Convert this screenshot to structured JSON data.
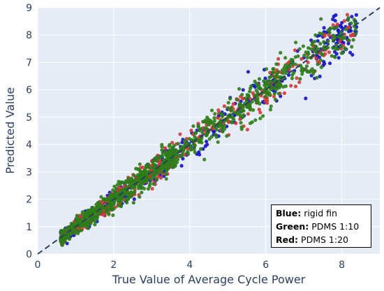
{
  "chart_data": {
    "type": "scatter",
    "xlabel": "True Value of Average Cycle Power",
    "ylabel": "Predicted Value",
    "xlim": [
      0,
      9
    ],
    "ylim": [
      0,
      9
    ],
    "x_ticks": [
      "0",
      "2",
      "4",
      "6",
      "8"
    ],
    "y_ticks": [
      "0",
      "1",
      "2",
      "3",
      "4",
      "5",
      "6",
      "7",
      "8",
      "9"
    ],
    "grid": true,
    "background": "#e5ecf6",
    "reference_line": {
      "from": [
        0,
        0
      ],
      "to": [
        9,
        9
      ],
      "style": "dashed",
      "color": "#2a3f5f"
    },
    "legend_placement": "bottom-right",
    "series": [
      {
        "key": "Blue:",
        "name": "rigid fin",
        "color": "#1212c8"
      },
      {
        "key": "Green:",
        "name": "PDMS 1:10",
        "color": "#2e7d1a"
      },
      {
        "key": "Red:",
        "name": "PDMS 1:20",
        "color": "#d23a3a"
      }
    ]
  }
}
